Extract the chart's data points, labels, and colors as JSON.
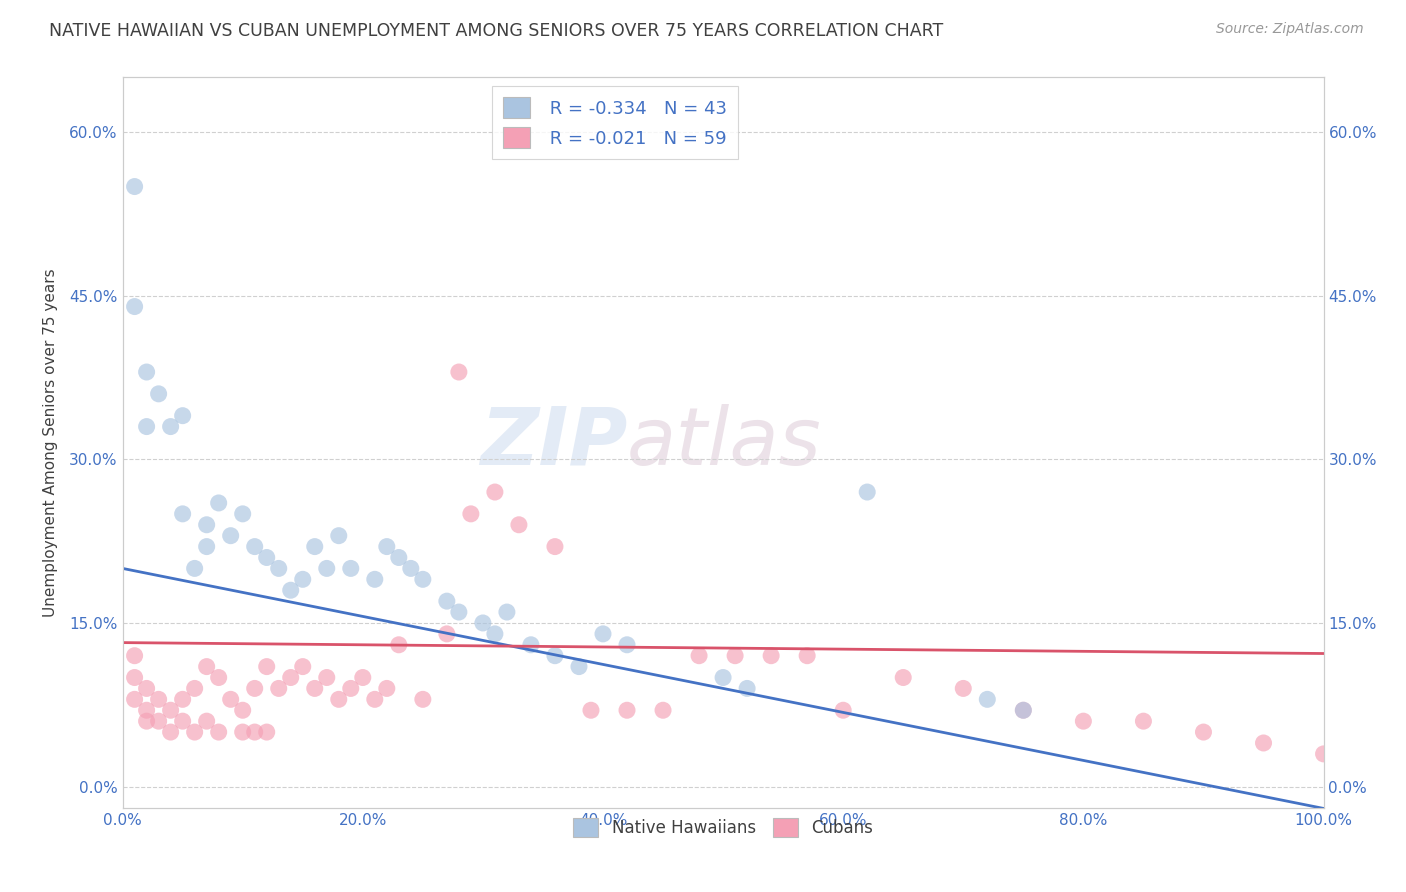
{
  "title": "NATIVE HAWAIIAN VS CUBAN UNEMPLOYMENT AMONG SENIORS OVER 75 YEARS CORRELATION CHART",
  "source": "Source: ZipAtlas.com",
  "ylabel": "Unemployment Among Seniors over 75 years",
  "xlim": [
    0,
    1.0
  ],
  "ylim": [
    -0.02,
    0.65
  ],
  "xticks": [
    0.0,
    0.2,
    0.4,
    0.6,
    0.8,
    1.0
  ],
  "xticklabels": [
    "0.0%",
    "20.0%",
    "40.0%",
    "60.0%",
    "80.0%",
    "100.0%"
  ],
  "yticks": [
    0.0,
    0.15,
    0.3,
    0.45,
    0.6
  ],
  "yticklabels": [
    "0.0%",
    "15.0%",
    "30.0%",
    "45.0%",
    "60.0%"
  ],
  "native_hawaiian_x": [
    0.01,
    0.01,
    0.02,
    0.02,
    0.03,
    0.04,
    0.05,
    0.05,
    0.06,
    0.07,
    0.07,
    0.08,
    0.09,
    0.1,
    0.11,
    0.12,
    0.13,
    0.14,
    0.15,
    0.16,
    0.17,
    0.18,
    0.19,
    0.21,
    0.22,
    0.23,
    0.24,
    0.25,
    0.27,
    0.28,
    0.3,
    0.31,
    0.32,
    0.34,
    0.36,
    0.38,
    0.4,
    0.42,
    0.5,
    0.52,
    0.62,
    0.72,
    0.75
  ],
  "native_hawaiian_y": [
    0.55,
    0.44,
    0.38,
    0.33,
    0.36,
    0.33,
    0.34,
    0.25,
    0.2,
    0.24,
    0.22,
    0.26,
    0.23,
    0.25,
    0.22,
    0.21,
    0.2,
    0.18,
    0.19,
    0.22,
    0.2,
    0.23,
    0.2,
    0.19,
    0.22,
    0.21,
    0.2,
    0.19,
    0.17,
    0.16,
    0.15,
    0.14,
    0.16,
    0.13,
    0.12,
    0.11,
    0.14,
    0.13,
    0.1,
    0.09,
    0.27,
    0.08,
    0.07
  ],
  "cuban_x": [
    0.01,
    0.01,
    0.01,
    0.02,
    0.02,
    0.02,
    0.03,
    0.03,
    0.04,
    0.04,
    0.05,
    0.05,
    0.06,
    0.06,
    0.07,
    0.07,
    0.08,
    0.08,
    0.09,
    0.1,
    0.1,
    0.11,
    0.11,
    0.12,
    0.12,
    0.13,
    0.14,
    0.15,
    0.16,
    0.17,
    0.18,
    0.19,
    0.2,
    0.21,
    0.22,
    0.23,
    0.25,
    0.27,
    0.29,
    0.31,
    0.33,
    0.36,
    0.39,
    0.42,
    0.45,
    0.48,
    0.51,
    0.54,
    0.57,
    0.6,
    0.65,
    0.7,
    0.75,
    0.8,
    0.85,
    0.9,
    0.95,
    1.0,
    0.28
  ],
  "cuban_y": [
    0.12,
    0.1,
    0.08,
    0.09,
    0.07,
    0.06,
    0.08,
    0.06,
    0.07,
    0.05,
    0.08,
    0.06,
    0.09,
    0.05,
    0.11,
    0.06,
    0.1,
    0.05,
    0.08,
    0.07,
    0.05,
    0.09,
    0.05,
    0.11,
    0.05,
    0.09,
    0.1,
    0.11,
    0.09,
    0.1,
    0.08,
    0.09,
    0.1,
    0.08,
    0.09,
    0.13,
    0.08,
    0.14,
    0.25,
    0.27,
    0.24,
    0.22,
    0.07,
    0.07,
    0.07,
    0.12,
    0.12,
    0.12,
    0.12,
    0.07,
    0.1,
    0.09,
    0.07,
    0.06,
    0.06,
    0.05,
    0.04,
    0.03,
    0.38
  ],
  "nh_line_x0": 0.0,
  "nh_line_y0": 0.2,
  "nh_line_x1": 1.0,
  "nh_line_y1": -0.02,
  "cuban_line_x0": 0.0,
  "cuban_line_y0": 0.132,
  "cuban_line_x1": 1.0,
  "cuban_line_y1": 0.122,
  "nh_color": "#aac4e0",
  "cuban_color": "#f4a0b5",
  "nh_line_color": "#4472c4",
  "cuban_line_color": "#d9536a",
  "nh_R": -0.334,
  "nh_N": 43,
  "cuban_R": -0.021,
  "cuban_N": 59,
  "legend_label_nh": "Native Hawaiians",
  "legend_label_cuban": "Cubans",
  "watermark_zip": "ZIP",
  "watermark_atlas": "atlas",
  "background_color": "#ffffff",
  "grid_color": "#d0d0d0",
  "title_color": "#404040",
  "axis_color": "#4472c4",
  "dot_size": 150,
  "dot_alpha": 0.65
}
